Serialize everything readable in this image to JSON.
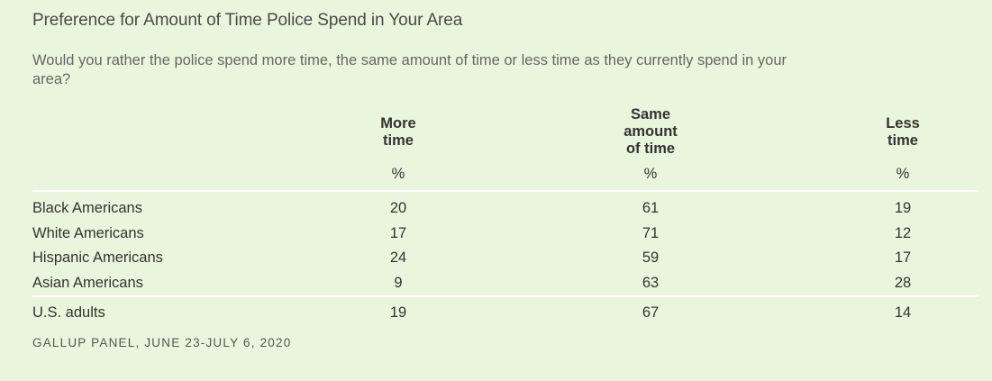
{
  "title": "Preference for Amount of Time Police Spend in Your Area",
  "subtitle": "Would you rather the police spend more time, the same amount of time or less time as they currently spend in your area?",
  "chart_data": {
    "type": "table",
    "columns": [
      "More time",
      "Same amount of time",
      "Less time"
    ],
    "unit": "%",
    "rows": [
      {
        "label": "Black Americans",
        "values": [
          20,
          61,
          19
        ]
      },
      {
        "label": "White Americans",
        "values": [
          17,
          71,
          12
        ]
      },
      {
        "label": "Hispanic Americans",
        "values": [
          24,
          59,
          17
        ]
      },
      {
        "label": "Asian Americans",
        "values": [
          9,
          63,
          28
        ]
      }
    ],
    "total": {
      "label": "U.S. adults",
      "values": [
        19,
        67,
        14
      ]
    }
  },
  "source": "GALLUP PANEL, JUNE 23-JULY 6, 2020"
}
